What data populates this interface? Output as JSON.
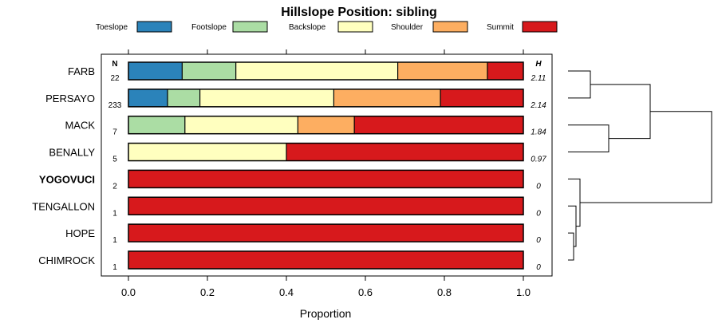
{
  "chart_data": {
    "type": "bar",
    "orientation": "horizontal",
    "stacked": true,
    "title": "Hillslope Position: sibling",
    "xlabel": "Proportion",
    "xlim": [
      0,
      1
    ],
    "x_ticks": [
      "0.0",
      "0.2",
      "0.4",
      "0.6",
      "0.8",
      "1.0"
    ],
    "legend_position": "top",
    "n_header": "N",
    "h_header": "H",
    "series": [
      {
        "name": "Toeslope",
        "color": "#2b83ba"
      },
      {
        "name": "Footslope",
        "color": "#abdda4"
      },
      {
        "name": "Backslope",
        "color": "#ffffbf"
      },
      {
        "name": "Shoulder",
        "color": "#fdae61"
      },
      {
        "name": "Summit",
        "color": "#d7191c"
      }
    ],
    "rows": [
      {
        "label": "FARB",
        "n": "22",
        "h": "2.11",
        "bold": false,
        "values": [
          0.136,
          0.136,
          0.41,
          0.227,
          0.091
        ]
      },
      {
        "label": "PERSAYO",
        "n": "233",
        "h": "2.14",
        "bold": false,
        "values": [
          0.099,
          0.082,
          0.339,
          0.27,
          0.21
        ]
      },
      {
        "label": "MACK",
        "n": "7",
        "h": "1.84",
        "bold": false,
        "values": [
          0.0,
          0.143,
          0.286,
          0.143,
          0.428
        ]
      },
      {
        "label": "BENALLY",
        "n": "5",
        "h": "0.97",
        "bold": false,
        "values": [
          0.0,
          0.0,
          0.4,
          0.0,
          0.6
        ]
      },
      {
        "label": "YOGOVUCI",
        "n": "2",
        "h": "0",
        "bold": true,
        "values": [
          0.0,
          0.0,
          0.0,
          0.0,
          1.0
        ]
      },
      {
        "label": "TENGALLON",
        "n": "1",
        "h": "0",
        "bold": false,
        "values": [
          0.0,
          0.0,
          0.0,
          0.0,
          1.0
        ]
      },
      {
        "label": "HOPE",
        "n": "1",
        "h": "0",
        "bold": false,
        "values": [
          0.0,
          0.0,
          0.0,
          0.0,
          1.0
        ]
      },
      {
        "label": "CHIMROCK",
        "n": "1",
        "h": "0",
        "bold": false,
        "values": [
          0.0,
          0.0,
          0.0,
          0.0,
          1.0
        ]
      }
    ]
  }
}
